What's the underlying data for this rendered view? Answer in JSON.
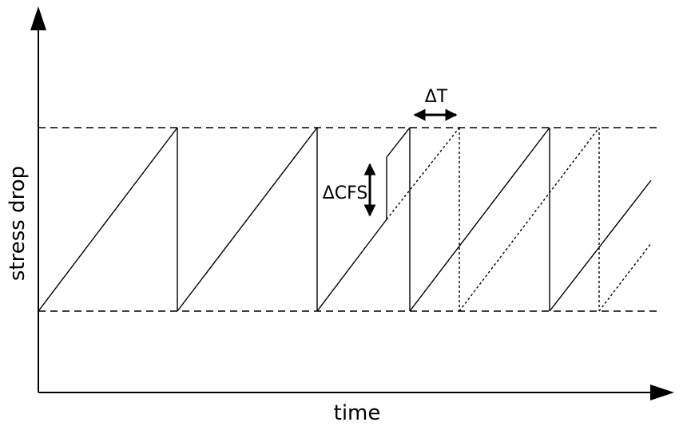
{
  "labels": {
    "x_axis": "time",
    "y_axis": "stress drop",
    "delta_t": "ΔT",
    "delta_cfs": "ΔCFS"
  },
  "style": {
    "stroke": "#000000",
    "background": "#ffffff"
  }
}
